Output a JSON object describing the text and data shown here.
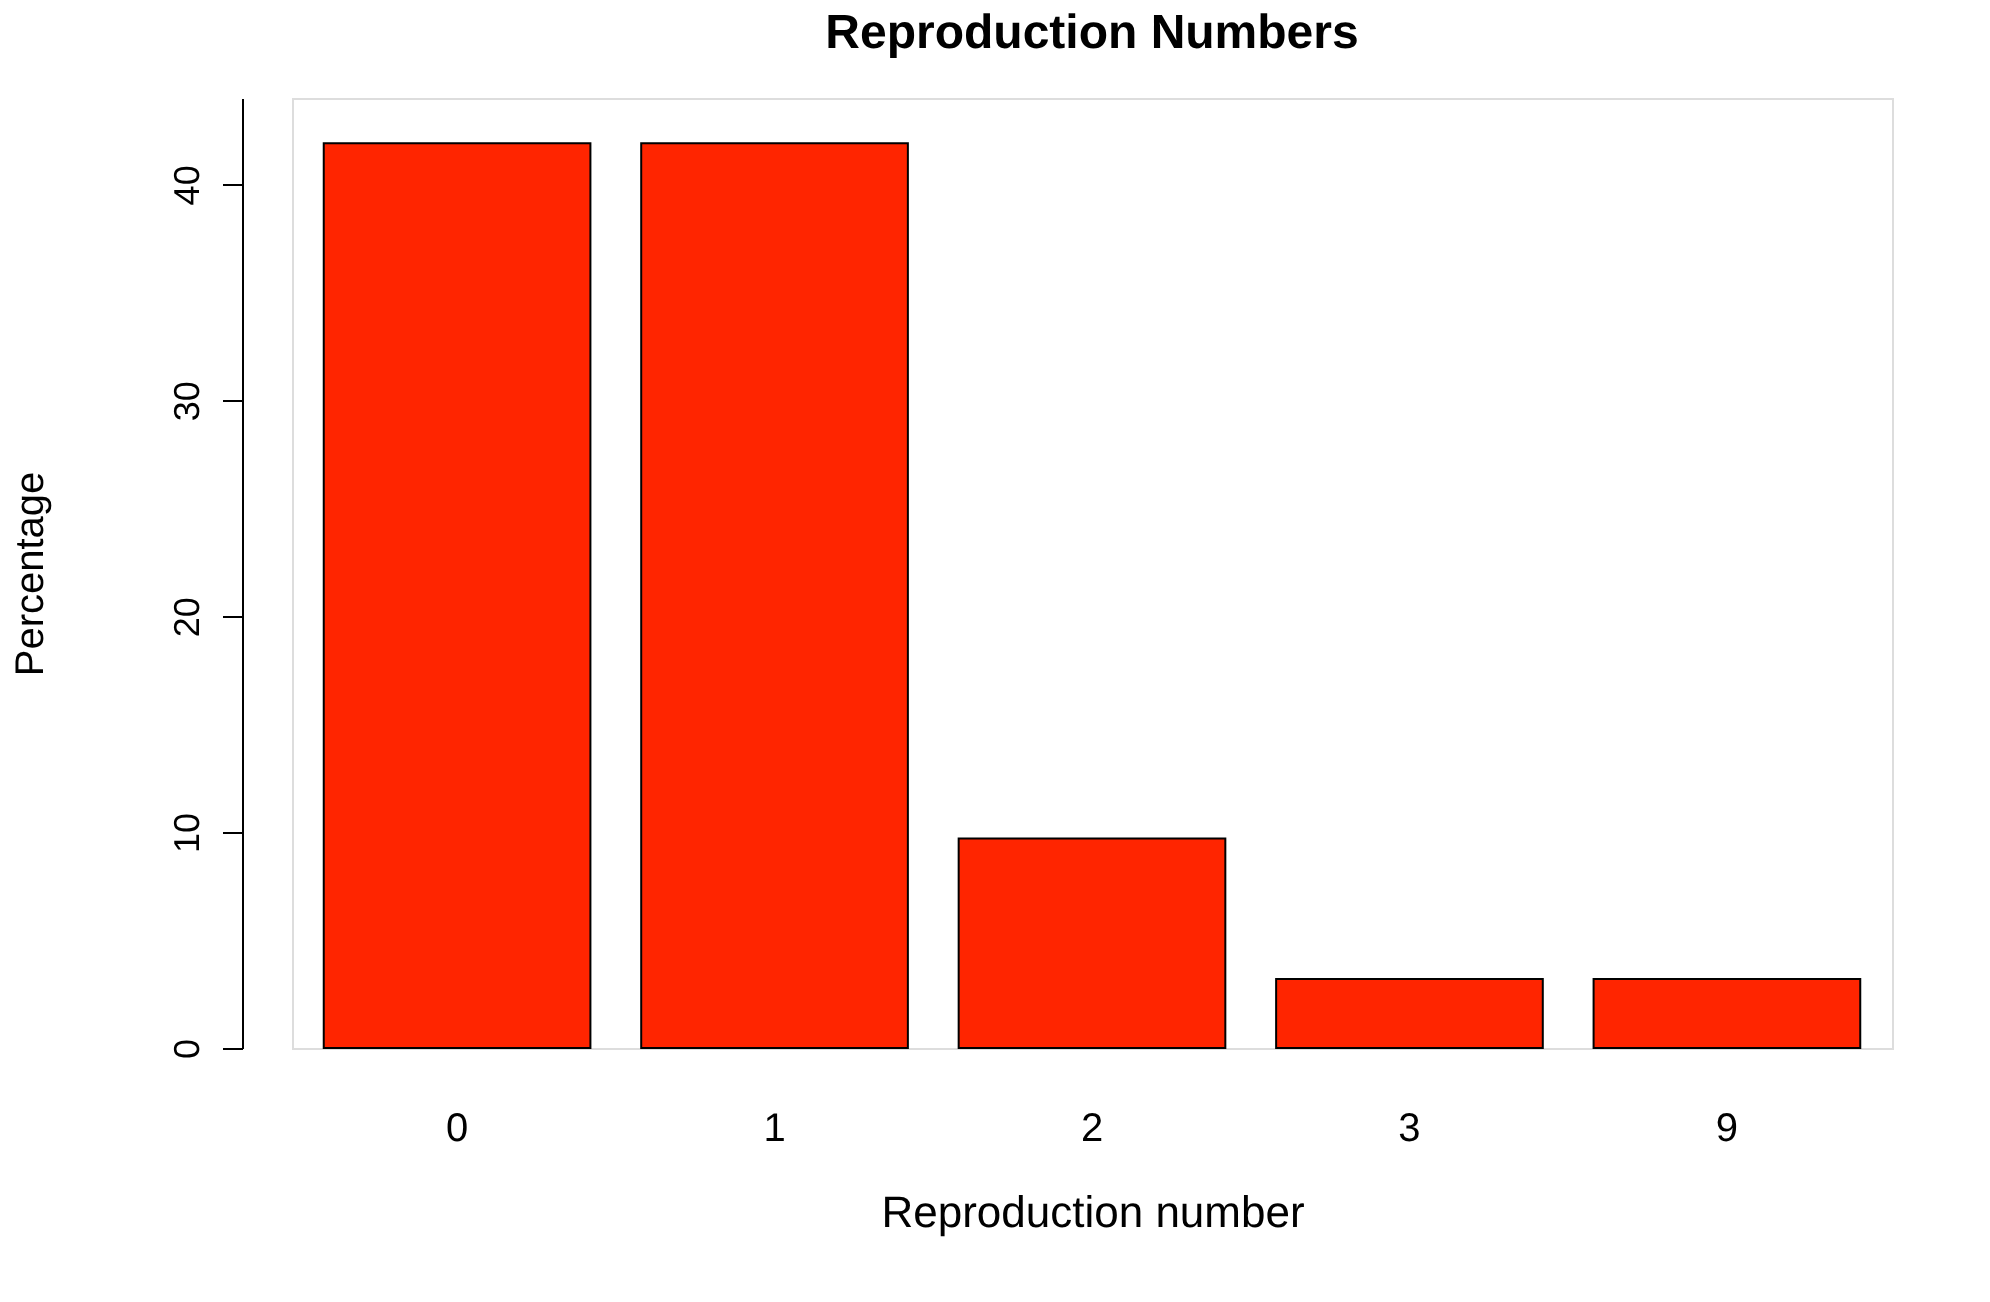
{
  "chart_data": {
    "type": "bar",
    "title": "Reproduction Numbers",
    "xlabel": "Reproduction number",
    "ylabel": "Percentage",
    "categories": [
      "0",
      "1",
      "2",
      "3",
      "9"
    ],
    "values": [
      41.9,
      41.9,
      9.7,
      3.2,
      3.2
    ],
    "color": "#ff2500",
    "ylim": [
      0,
      44
    ],
    "yticks": [
      0,
      10,
      20,
      30,
      40
    ],
    "grid": false
  }
}
